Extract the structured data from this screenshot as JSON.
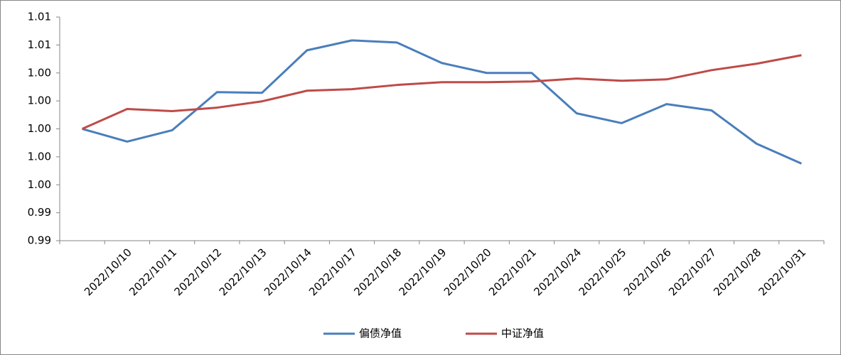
{
  "chart_data": {
    "type": "line",
    "categories": [
      null,
      "2022/10/10",
      "2022/10/11",
      "2022/10/12",
      "2022/10/13",
      "2022/10/14",
      "2022/10/17",
      "2022/10/18",
      "2022/10/19",
      "2022/10/20",
      "2022/10/21",
      "2022/10/24",
      "2022/10/25",
      "2022/10/26",
      "2022/10/27",
      "2022/10/28",
      "2022/10/31"
    ],
    "series": [
      {
        "name": "偏债净值",
        "color": "#4a7ebb",
        "values": [
          1.0,
          0.99909,
          0.9999,
          1.00263,
          1.00258,
          1.00562,
          1.00633,
          1.00618,
          1.00471,
          1.004,
          1.004,
          1.00111,
          1.00041,
          1.00177,
          1.00132,
          0.99894,
          0.99752
        ]
      },
      {
        "name": "中证净值",
        "color": "#be4b48",
        "values": [
          1.0,
          1.00142,
          1.00127,
          1.00152,
          1.00197,
          1.00273,
          1.00284,
          1.00314,
          1.00334,
          1.00334,
          1.00339,
          1.0036,
          1.00344,
          1.00354,
          1.0042,
          1.00466,
          1.00527
        ]
      }
    ],
    "ylim": [
      0.992,
      1.008
    ],
    "yticks": [
      {
        "value": 0.992,
        "label": "0.99"
      },
      {
        "value": 0.994,
        "label": "0.99"
      },
      {
        "value": 0.996,
        "label": "1.00"
      },
      {
        "value": 0.998,
        "label": "1.00"
      },
      {
        "value": 1.0,
        "label": "1.00"
      },
      {
        "value": 1.002,
        "label": "1.00"
      },
      {
        "value": 1.004,
        "label": "1.00"
      },
      {
        "value": 1.006,
        "label": "1.01"
      },
      {
        "value": 1.008,
        "label": "1.01"
      }
    ],
    "grid": false,
    "legend": "bottom"
  }
}
